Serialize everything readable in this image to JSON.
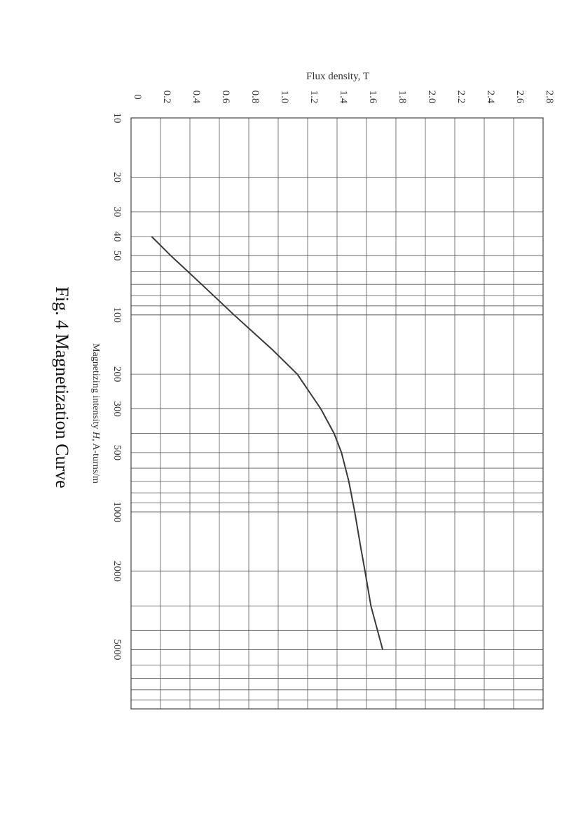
{
  "chart_data": {
    "type": "line",
    "title": "Fig. 4 Magnetization Curve",
    "xlabel": "Magnetizing intensity H, A-turns/m",
    "xlabel_parts": {
      "prefix": "Magnetizing intensity ",
      "symbol": "H",
      "suffix": ", A-turns/m"
    },
    "ylabel": "Flux density, T",
    "x_scale": "log",
    "xlim": [
      10,
      10000
    ],
    "ylim": [
      0,
      2.8
    ],
    "x_ticks": [
      10,
      20,
      30,
      40,
      50,
      100,
      200,
      300,
      500,
      1000,
      2000,
      5000
    ],
    "x_tick_labels": [
      "10",
      "20",
      "30",
      "40",
      "50",
      "100",
      "200",
      "300",
      "500",
      "1000",
      "2000",
      "5000"
    ],
    "y_ticks": [
      0,
      0.2,
      0.4,
      0.6,
      0.8,
      1.0,
      1.2,
      1.4,
      1.6,
      1.8,
      2.0,
      2.2,
      2.4,
      2.6,
      2.8
    ],
    "y_tick_labels": [
      "0",
      "0.2",
      "0.4",
      "0.6",
      "0.8",
      "1.0",
      "1.2",
      "1.4",
      "1.6",
      "1.8",
      "2.0",
      "2.2",
      "2.4",
      "2.6",
      "2.8"
    ],
    "grid": true,
    "orientation": "rotated 90 degrees clockwise",
    "series": [
      {
        "x": [
          40,
          50,
          70,
          100,
          150,
          200,
          300,
          400,
          500,
          700,
          1000,
          1500,
          2000,
          3000,
          5000
        ],
        "y": [
          0.14,
          0.27,
          0.48,
          0.7,
          0.96,
          1.13,
          1.29,
          1.38,
          1.43,
          1.48,
          1.52,
          1.56,
          1.59,
          1.63,
          1.71
        ]
      }
    ],
    "colors": {
      "curve": "#3a3a3a",
      "grid": "#555555",
      "text": "#333333"
    }
  }
}
